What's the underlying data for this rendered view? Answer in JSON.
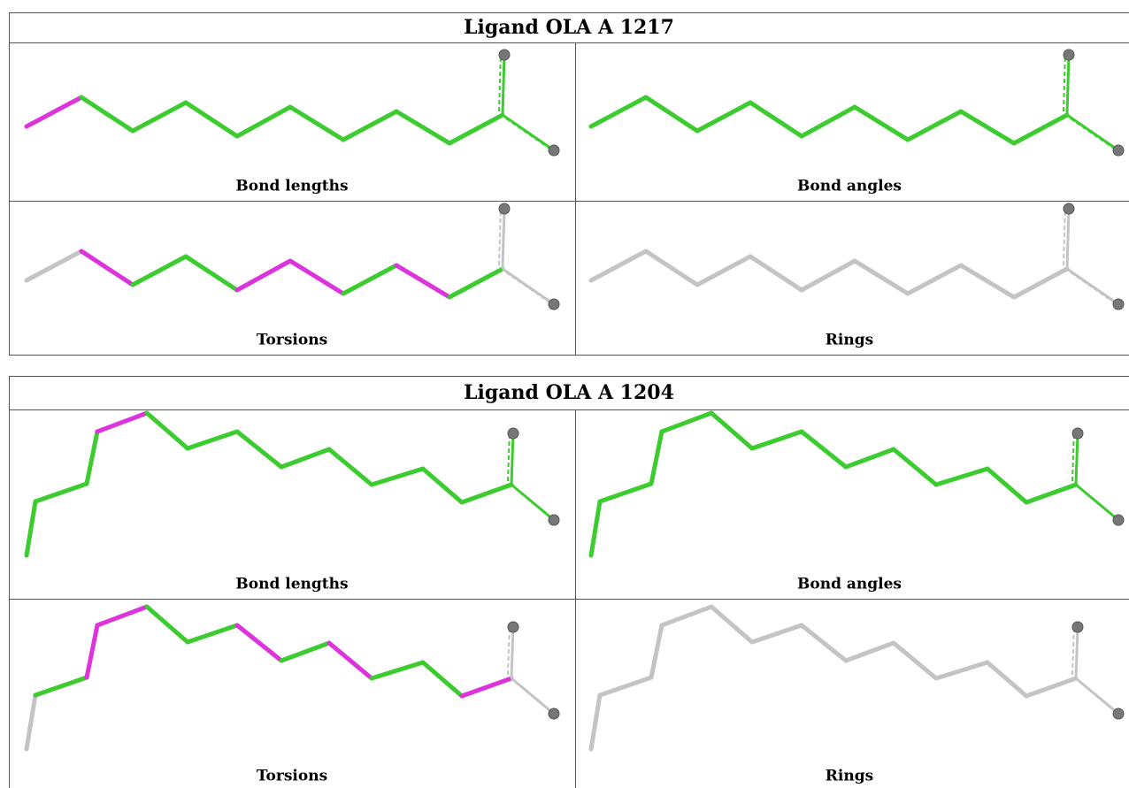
{
  "tables": [
    {
      "title": "Ligand OLA A 1217",
      "cells": [
        "Bond lengths",
        "Bond angles",
        "Torsions",
        "Rings"
      ]
    },
    {
      "title": "Ligand OLA A 1204",
      "cells": [
        "Bond lengths",
        "Bond angles",
        "Torsions",
        "Rings"
      ]
    }
  ]
}
